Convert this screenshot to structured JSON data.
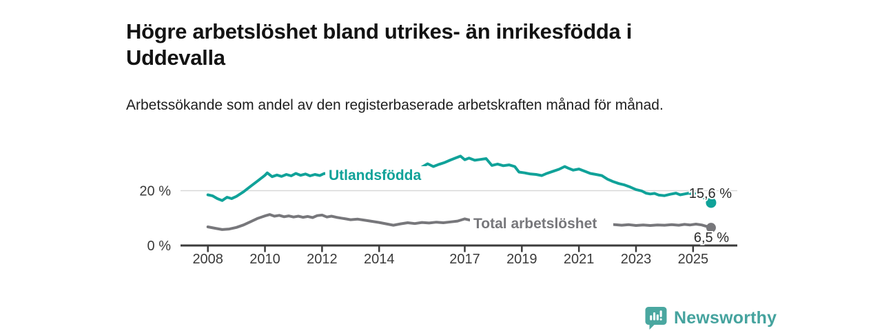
{
  "header": {
    "title": "Högre arbetslöshet bland utrikes- än inrikesfödda i Uddevalla",
    "subtitle": "Arbetssökande som andel av den registerbaserade arbetskraften månad för månad."
  },
  "chart_data": {
    "type": "line",
    "title": "Högre arbetslöshet bland utrikes- än inrikesfödda i Uddevalla",
    "subtitle": "Arbetssökande som andel av den registerbaserade arbetskraften månad för månad.",
    "unit": "%",
    "grid": "horizontal-at-20-only",
    "legend_position": "inline-labels",
    "xlim": [
      2007.6,
      2026.4
    ],
    "ylim": [
      0,
      36
    ],
    "x_axis": {
      "ticks": [
        {
          "year": 2008,
          "label": "2008"
        },
        {
          "year": 2010,
          "label": "2010"
        },
        {
          "year": 2012,
          "label": "2012"
        },
        {
          "year": 2014,
          "label": "2014"
        },
        {
          "year": 2017,
          "label": "2017"
        },
        {
          "year": 2019,
          "label": "2019"
        },
        {
          "year": 2021,
          "label": "2021"
        },
        {
          "year": 2023,
          "label": "2023"
        },
        {
          "year": 2025,
          "label": "2025"
        }
      ]
    },
    "y_axis": {
      "ticks": [
        {
          "value": 20,
          "label": "20 %",
          "gridline": true
        },
        {
          "value": 0,
          "label": "0 %",
          "gridline": false
        }
      ]
    },
    "series": [
      {
        "name": "Utlandsfödda",
        "color": "#10a299",
        "end_label": "15,6 %",
        "latest": {
          "x": 2025.63,
          "value": 15.6
        },
        "points": [
          [
            2008.0,
            18.5
          ],
          [
            2008.17,
            18.1
          ],
          [
            2008.33,
            17.1
          ],
          [
            2008.5,
            16.4
          ],
          [
            2008.67,
            17.6
          ],
          [
            2008.83,
            17.1
          ],
          [
            2009.0,
            17.9
          ],
          [
            2009.25,
            19.6
          ],
          [
            2009.5,
            21.6
          ],
          [
            2009.75,
            23.6
          ],
          [
            2010.0,
            25.6
          ],
          [
            2010.08,
            26.5
          ],
          [
            2010.25,
            25.1
          ],
          [
            2010.42,
            25.7
          ],
          [
            2010.58,
            25.2
          ],
          [
            2010.75,
            25.9
          ],
          [
            2010.92,
            25.4
          ],
          [
            2011.08,
            26.3
          ],
          [
            2011.25,
            25.6
          ],
          [
            2011.42,
            26.1
          ],
          [
            2011.58,
            25.4
          ],
          [
            2011.75,
            25.9
          ],
          [
            2011.92,
            25.5
          ],
          [
            2012.08,
            26.3
          ],
          [
            2012.25,
            25.8
          ],
          [
            2012.42,
            26.5
          ],
          [
            2012.58,
            26.1
          ],
          [
            2012.75,
            26.6
          ],
          [
            2013.0,
            26.4
          ],
          [
            2013.25,
            27.0
          ],
          [
            2013.5,
            26.7
          ],
          [
            2013.75,
            27.2
          ],
          [
            2014.0,
            26.9
          ],
          [
            2014.25,
            27.5
          ],
          [
            2014.5,
            27.2
          ],
          [
            2014.75,
            27.7
          ],
          [
            2015.0,
            27.9
          ],
          [
            2015.25,
            28.1
          ],
          [
            2015.45,
            28.3
          ],
          [
            2015.7,
            29.8
          ],
          [
            2015.9,
            28.8
          ],
          [
            2016.1,
            29.6
          ],
          [
            2016.3,
            30.3
          ],
          [
            2016.5,
            31.2
          ],
          [
            2016.7,
            32.0
          ],
          [
            2016.85,
            32.6
          ],
          [
            2017.0,
            31.3
          ],
          [
            2017.15,
            31.9
          ],
          [
            2017.35,
            31.1
          ],
          [
            2017.55,
            31.4
          ],
          [
            2017.75,
            31.7
          ],
          [
            2017.95,
            29.2
          ],
          [
            2018.15,
            29.7
          ],
          [
            2018.35,
            29.1
          ],
          [
            2018.55,
            29.4
          ],
          [
            2018.75,
            28.8
          ],
          [
            2018.9,
            26.8
          ],
          [
            2019.1,
            26.5
          ],
          [
            2019.3,
            26.1
          ],
          [
            2019.5,
            25.9
          ],
          [
            2019.7,
            25.5
          ],
          [
            2019.85,
            26.2
          ],
          [
            2020.1,
            27.1
          ],
          [
            2020.3,
            27.8
          ],
          [
            2020.5,
            28.8
          ],
          [
            2020.65,
            28.1
          ],
          [
            2020.8,
            27.5
          ],
          [
            2021.0,
            27.9
          ],
          [
            2021.2,
            27.1
          ],
          [
            2021.4,
            26.3
          ],
          [
            2021.6,
            25.9
          ],
          [
            2021.8,
            25.5
          ],
          [
            2022.0,
            24.2
          ],
          [
            2022.2,
            23.3
          ],
          [
            2022.4,
            22.6
          ],
          [
            2022.6,
            22.1
          ],
          [
            2022.8,
            21.3
          ],
          [
            2023.0,
            20.4
          ],
          [
            2023.2,
            19.9
          ],
          [
            2023.35,
            19.1
          ],
          [
            2023.5,
            18.8
          ],
          [
            2023.65,
            19.0
          ],
          [
            2023.8,
            18.4
          ],
          [
            2024.0,
            18.2
          ],
          [
            2024.2,
            18.7
          ],
          [
            2024.4,
            19.1
          ],
          [
            2024.55,
            18.5
          ],
          [
            2024.7,
            18.8
          ],
          [
            2024.85,
            19.1
          ],
          [
            2025.0,
            18.7
          ],
          [
            2025.05,
            19.0
          ]
        ]
      },
      {
        "name": "Total arbetslöshet",
        "color": "#77777b",
        "end_label": "6,5 %",
        "latest": {
          "x": 2025.63,
          "value": 6.5
        },
        "points": [
          [
            2008.0,
            6.8
          ],
          [
            2008.25,
            6.3
          ],
          [
            2008.5,
            5.8
          ],
          [
            2008.75,
            6.0
          ],
          [
            2009.0,
            6.6
          ],
          [
            2009.25,
            7.5
          ],
          [
            2009.5,
            8.7
          ],
          [
            2009.75,
            9.9
          ],
          [
            2010.0,
            10.8
          ],
          [
            2010.17,
            11.3
          ],
          [
            2010.33,
            10.7
          ],
          [
            2010.5,
            11.0
          ],
          [
            2010.67,
            10.5
          ],
          [
            2010.83,
            10.8
          ],
          [
            2011.0,
            10.4
          ],
          [
            2011.17,
            10.7
          ],
          [
            2011.33,
            10.3
          ],
          [
            2011.5,
            10.6
          ],
          [
            2011.67,
            10.2
          ],
          [
            2011.83,
            10.9
          ],
          [
            2012.0,
            11.1
          ],
          [
            2012.17,
            10.4
          ],
          [
            2012.33,
            10.7
          ],
          [
            2012.5,
            10.3
          ],
          [
            2012.67,
            10.0
          ],
          [
            2012.83,
            9.7
          ],
          [
            2013.0,
            9.4
          ],
          [
            2013.25,
            9.6
          ],
          [
            2013.5,
            9.2
          ],
          [
            2013.75,
            8.8
          ],
          [
            2014.0,
            8.4
          ],
          [
            2014.25,
            7.9
          ],
          [
            2014.5,
            7.4
          ],
          [
            2014.75,
            7.9
          ],
          [
            2015.0,
            8.3
          ],
          [
            2015.25,
            8.0
          ],
          [
            2015.5,
            8.4
          ],
          [
            2015.75,
            8.2
          ],
          [
            2016.0,
            8.5
          ],
          [
            2016.25,
            8.3
          ],
          [
            2016.5,
            8.6
          ],
          [
            2016.75,
            8.9
          ],
          [
            2017.0,
            9.7
          ],
          [
            2017.25,
            9.1
          ],
          [
            2017.5,
            8.9
          ],
          [
            2017.75,
            8.7
          ],
          [
            2018.0,
            8.5
          ],
          [
            2018.25,
            8.8
          ],
          [
            2018.5,
            8.5
          ],
          [
            2018.75,
            8.7
          ],
          [
            2019.0,
            8.5
          ],
          [
            2019.25,
            8.3
          ],
          [
            2019.5,
            8.4
          ],
          [
            2019.75,
            8.6
          ],
          [
            2020.0,
            8.9
          ],
          [
            2020.3,
            9.7
          ],
          [
            2020.55,
            10.0
          ],
          [
            2020.8,
            9.7
          ],
          [
            2021.0,
            9.3
          ],
          [
            2021.25,
            8.9
          ],
          [
            2021.5,
            8.6
          ],
          [
            2021.75,
            8.2
          ],
          [
            2022.0,
            7.9
          ],
          [
            2022.25,
            7.6
          ],
          [
            2022.5,
            7.4
          ],
          [
            2022.75,
            7.6
          ],
          [
            2023.0,
            7.3
          ],
          [
            2023.25,
            7.5
          ],
          [
            2023.5,
            7.3
          ],
          [
            2023.75,
            7.5
          ],
          [
            2024.0,
            7.4
          ],
          [
            2024.25,
            7.6
          ],
          [
            2024.5,
            7.4
          ],
          [
            2024.7,
            7.7
          ],
          [
            2024.9,
            7.5
          ],
          [
            2025.1,
            7.8
          ],
          [
            2025.3,
            7.5
          ]
        ]
      }
    ]
  },
  "footer": {
    "brand": "Newsworthy",
    "logo_icon": "bar-chart-speech-bubble",
    "logo_color": "#4aa7a0",
    "brand_text_color": "#45a39e"
  },
  "colors": {
    "accent_teal": "#10a299",
    "series_gray": "#77777b",
    "axis": "#3a3a3a",
    "gridline": "#d8d8d8",
    "end_label_text": "#2a2a2a"
  }
}
